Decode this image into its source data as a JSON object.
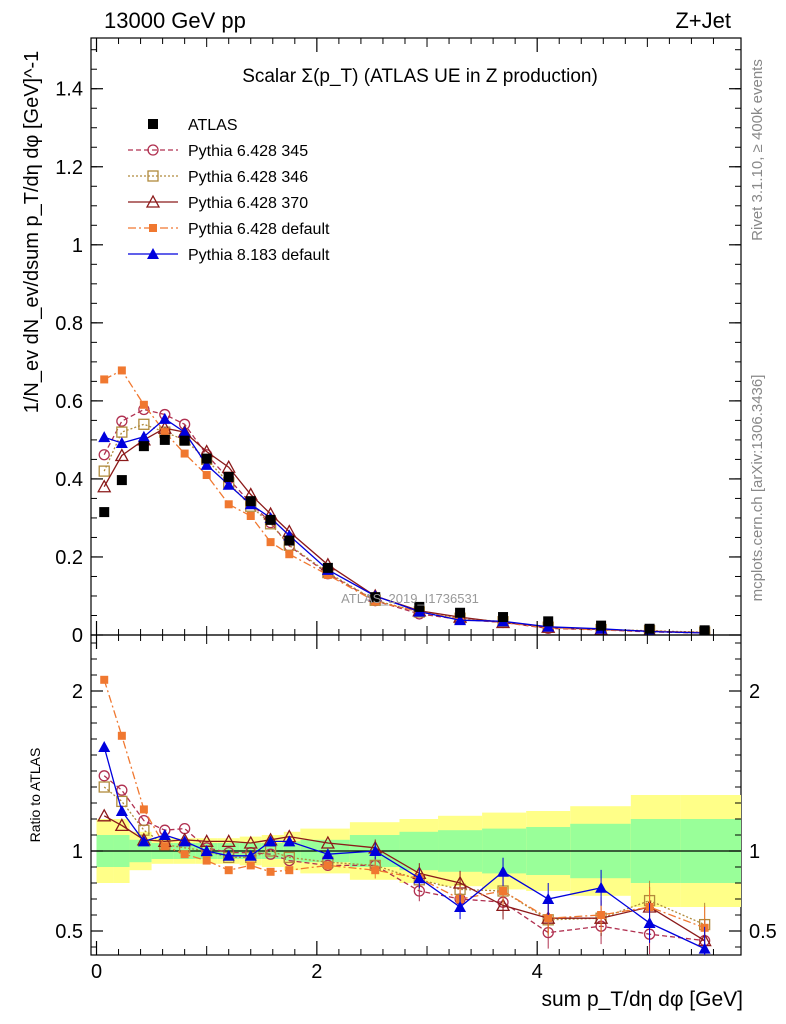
{
  "chart_data": {
    "type": "line",
    "header_left": "13000 GeV pp",
    "header_right": "Z+Jet",
    "title": "Scalar Σ(p_T) (ATLAS UE in Z production)",
    "ylabel_top": "1/N_ev dN_ev/dsum p_T/dη dφ [GeV]^-1",
    "ylabel_bottom": "Ratio to ATLAS",
    "xlabel": "sum p_T/dη dφ [GeV]",
    "watermark": "ATLAS_2019_I1736531",
    "side_top": "Rivet 3.1.10, ≥ 400k events",
    "side_bottom": "mcplots.cern.ch [arXiv:1306.3436]",
    "xlim": [
      -0.05,
      5.85
    ],
    "ylim_top": [
      0,
      1.53
    ],
    "ylim_bottom": [
      0.35,
      2.35
    ],
    "x_ticks": [
      "0",
      "2",
      "4"
    ],
    "y_ticks_top": [
      "0",
      "0.2",
      "0.4",
      "0.6",
      "0.8",
      "1",
      "1.2",
      "1.4"
    ],
    "y_ticks_bottom": [
      "0.5",
      "1",
      "2"
    ],
    "bins": [
      0,
      0.15,
      0.3,
      0.5,
      0.7,
      0.9,
      1.1,
      1.3,
      1.5,
      1.7,
      1.85,
      2.3,
      2.75,
      3.1,
      3.5,
      3.9,
      4.3,
      4.85,
      5.3,
      5.85
    ],
    "x": [
      0.07,
      0.23,
      0.43,
      0.62,
      0.8,
      1.0,
      1.2,
      1.4,
      1.58,
      1.75,
      2.1,
      2.53,
      2.93,
      3.3,
      3.69,
      4.1,
      4.58,
      5.02,
      5.52
    ],
    "band_inner": [
      0.1,
      0.1,
      0.07,
      0.05,
      0.05,
      0.05,
      0.05,
      0.05,
      0.05,
      0.06,
      0.07,
      0.1,
      0.12,
      0.13,
      0.14,
      0.15,
      0.17,
      0.2,
      0.2
    ],
    "band_outer": [
      0.2,
      0.2,
      0.12,
      0.08,
      0.08,
      0.08,
      0.08,
      0.09,
      0.1,
      0.12,
      0.14,
      0.18,
      0.2,
      0.22,
      0.24,
      0.25,
      0.28,
      0.35,
      0.35
    ],
    "data": {
      "name": "ATLAS",
      "color": "#000000",
      "values": [
        0.315,
        0.397,
        0.484,
        0.5,
        0.498,
        0.452,
        0.405,
        0.343,
        0.295,
        0.242,
        0.172,
        0.097,
        0.072,
        0.057,
        0.046,
        0.035,
        0.024,
        0.016,
        0.012
      ]
    },
    "series": [
      {
        "name": "Pythia 6.428 345",
        "color": "#b03050",
        "dash": "5,3",
        "marker": "circle-open",
        "values": [
          0.462,
          0.548,
          0.578,
          0.565,
          0.54,
          0.462,
          0.4,
          0.338,
          0.288,
          0.228,
          0.157,
          0.088,
          0.054,
          0.04,
          0.032,
          0.017,
          0.013,
          0.008,
          0.005
        ],
        "ratios": [
          1.47,
          1.38,
          1.19,
          1.13,
          1.14,
          1.02,
          0.99,
          0.99,
          0.98,
          0.94,
          0.91,
          0.91,
          0.75,
          0.7,
          0.68,
          0.49,
          0.53,
          0.48,
          0.44
        ]
      },
      {
        "name": "Pythia 6.428 346",
        "color": "#b08a3c",
        "dash": "2,2",
        "marker": "square-open",
        "values": [
          0.42,
          0.52,
          0.54,
          0.52,
          0.5,
          0.45,
          0.39,
          0.33,
          0.285,
          0.23,
          0.16,
          0.089,
          0.059,
          0.043,
          0.034,
          0.02,
          0.014,
          0.011,
          0.007
        ],
        "ratios": [
          1.4,
          1.31,
          1.13,
          1.04,
          1.02,
          1.0,
          0.96,
          0.96,
          1.0,
          0.96,
          0.93,
          0.91,
          0.82,
          0.76,
          0.75,
          0.57,
          0.58,
          0.69,
          0.54
        ]
      },
      {
        "name": "Pythia 6.428 370",
        "color": "#8b1a1a",
        "dash": "",
        "marker": "triangle-open",
        "values": [
          0.38,
          0.46,
          0.5,
          0.53,
          0.52,
          0.47,
          0.43,
          0.36,
          0.31,
          0.265,
          0.18,
          0.1,
          0.062,
          0.046,
          0.032,
          0.02,
          0.014,
          0.01,
          0.006
        ],
        "ratios": [
          1.22,
          1.16,
          1.07,
          1.06,
          1.07,
          1.06,
          1.06,
          1.05,
          1.07,
          1.09,
          1.05,
          1.02,
          0.86,
          0.8,
          0.66,
          0.58,
          0.58,
          0.65,
          0.44
        ]
      },
      {
        "name": "Pythia 6.428 default",
        "color": "#f07830",
        "dash": "8,3,2,3",
        "marker": "square-filled",
        "values": [
          0.655,
          0.678,
          0.59,
          0.52,
          0.465,
          0.41,
          0.335,
          0.305,
          0.238,
          0.207,
          0.154,
          0.086,
          0.06,
          0.04,
          0.033,
          0.018,
          0.013,
          0.01,
          0.005
        ],
        "ratios": [
          2.07,
          1.72,
          1.26,
          1.03,
          0.98,
          0.94,
          0.88,
          0.91,
          0.87,
          0.88,
          0.91,
          0.88,
          0.83,
          0.7,
          0.75,
          0.58,
          0.6,
          0.65,
          0.52
        ]
      },
      {
        "name": "Pythia 8.183 default",
        "color": "#0000dd",
        "dash": "",
        "marker": "triangle-filled",
        "values": [
          0.507,
          0.492,
          0.508,
          0.554,
          0.52,
          0.436,
          0.385,
          0.335,
          0.3,
          0.255,
          0.167,
          0.1,
          0.06,
          0.038,
          0.035,
          0.021,
          0.016,
          0.009,
          0.005
        ],
        "ratios": [
          1.65,
          1.25,
          1.06,
          1.1,
          1.06,
          1.0,
          0.97,
          0.97,
          1.06,
          1.06,
          0.98,
          1.0,
          0.83,
          0.65,
          0.87,
          0.7,
          0.77,
          0.55,
          0.39
        ]
      }
    ]
  }
}
